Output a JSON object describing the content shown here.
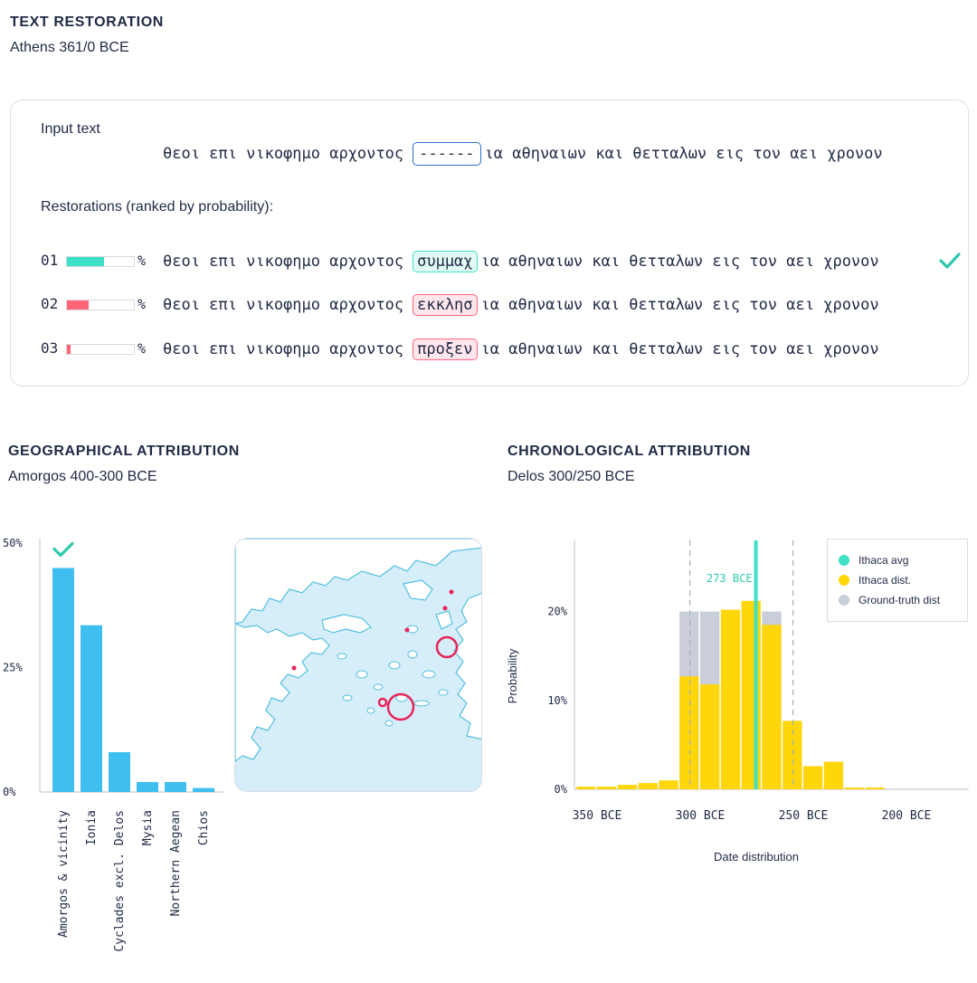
{
  "restoration": {
    "title": "TEXT RESTORATION",
    "subtitle": "Athens 361/0 BCE",
    "input_label": "Input text",
    "text_before": "θεοι επι νικοφημο αρχοντος",
    "gap": "------",
    "text_after": "ια αθηναιων και θετταλων εις τον αει χρονον",
    "restorations_label": "Restorations (ranked by probability):",
    "percent_sign": "%",
    "items": [
      {
        "rank": "01",
        "word": "συμμαχ",
        "fill": 0.55,
        "color": "#3ee0c6",
        "bg": "#e3fbf5",
        "border": "#3ee0c6",
        "correct": true
      },
      {
        "rank": "02",
        "word": "εκκλησ",
        "fill": 0.32,
        "color": "#ff6478",
        "bg": "#ffe6ec",
        "border": "#ff6478",
        "correct": false
      },
      {
        "rank": "03",
        "word": "προξεν",
        "fill": 0.06,
        "color": "#ff6478",
        "bg": "#ffe6ec",
        "border": "#ff6478",
        "correct": false
      }
    ]
  },
  "geographical": {
    "title": "GEOGRAPHICAL ATTRIBUTION",
    "subtitle": "Amorgos 400-300 BCE"
  },
  "chronological": {
    "title": "CHRONOLOGICAL ATTRIBUTION",
    "subtitle": "Delos 300/250 BCE",
    "avg_label": "273 BCE"
  },
  "chart_data": [
    {
      "type": "bar",
      "categories": [
        "Amorgos & vicinity",
        "Ionia",
        "Cyclades excl. Delos",
        "Mysia",
        "Northern Aegean",
        "Chios"
      ],
      "values": [
        45,
        33.5,
        8,
        2,
        2,
        0.8
      ],
      "ylim": [
        0,
        50
      ],
      "yticks": [
        0,
        25,
        50
      ],
      "ytick_labels": [
        "0%",
        "25%",
        "50%"
      ],
      "color": "#3fbff0",
      "correct_index": 0
    },
    {
      "type": "bar",
      "title": "",
      "xlabel": "Date distribution",
      "ylabel": "Probability",
      "x_bins_bce": [
        350,
        345,
        340,
        335,
        330,
        325,
        320,
        315,
        310,
        305,
        300,
        295,
        290,
        285,
        280,
        275,
        270,
        265,
        260,
        255,
        250,
        245,
        240,
        235,
        230,
        225,
        220,
        215,
        210,
        205,
        200,
        195,
        190,
        185,
        180
      ],
      "bin_width_years": 10,
      "bins": [
        {
          "start": 360,
          "ithaca": 0.3,
          "truth": 0
        },
        {
          "start": 350,
          "ithaca": 0.3,
          "truth": 0
        },
        {
          "start": 340,
          "ithaca": 0.5,
          "truth": 0
        },
        {
          "start": 330,
          "ithaca": 0.7,
          "truth": 0
        },
        {
          "start": 320,
          "ithaca": 1.0,
          "truth": 0
        },
        {
          "start": 310,
          "ithaca": 12.7,
          "truth": 20
        },
        {
          "start": 300,
          "ithaca": 11.8,
          "truth": 20
        },
        {
          "start": 290,
          "ithaca": 20.2,
          "truth": 20
        },
        {
          "start": 280,
          "ithaca": 21.2,
          "truth": 20
        },
        {
          "start": 270,
          "ithaca": 18.5,
          "truth": 20
        },
        {
          "start": 260,
          "ithaca": 7.7,
          "truth": 0
        },
        {
          "start": 250,
          "ithaca": 2.6,
          "truth": 0
        },
        {
          "start": 240,
          "ithaca": 3.1,
          "truth": 0
        },
        {
          "start": 230,
          "ithaca": 0.2,
          "truth": 0
        },
        {
          "start": 220,
          "ithaca": 0.2,
          "truth": 0
        }
      ],
      "xticks": [
        350,
        300,
        250,
        200
      ],
      "xtick_labels": [
        "350 BCE",
        "300 BCE",
        "250 BCE",
        "200 BCE"
      ],
      "ylim": [
        0,
        28
      ],
      "yticks": [
        0,
        10,
        20
      ],
      "ytick_labels": [
        "0%",
        "10%",
        "20%"
      ],
      "avg": 273,
      "truth_range": [
        305,
        255
      ],
      "legend": [
        {
          "name": "Ithaca avg",
          "color": "#3ee0c6"
        },
        {
          "name": "Ithaca dist.",
          "color": "#ffd60a"
        },
        {
          "name": "Ground-truth dist",
          "color": "#c9ced8"
        }
      ],
      "legend_position": "top-right"
    }
  ]
}
